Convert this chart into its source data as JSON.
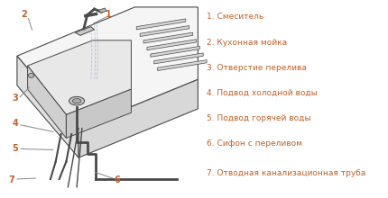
{
  "title": "",
  "background_color": "#ffffff",
  "legend_items": [
    "1. Смеситель",
    "2. Кухонная мойка",
    "3. Отверстие перелива",
    "4. Подвод холодной воды",
    "5. Подвод горячей воды",
    "6. Сифон с переливом",
    "7. Отводная канализационная труба"
  ],
  "legend_color": "#c0622a",
  "drawing_color": "#4a4a4a",
  "line_color": "#888888",
  "number_color": "#c0622a",
  "figsize": [
    4.3,
    2.2
  ],
  "dpi": 100
}
